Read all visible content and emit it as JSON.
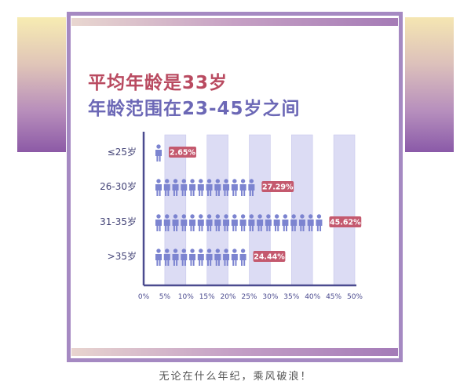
{
  "headline": {
    "line1": "平均年龄是33岁",
    "line2": "年龄范围在23-45岁之间"
  },
  "caption": "无论在什么年纪，乘风破浪！",
  "colors": {
    "accent_red": "#b94a60",
    "accent_blue": "#6c68b6",
    "person_icon": "#7c84d0",
    "label_badge": "#c4596e",
    "axis": "#4b4b8f",
    "band": "#dcdcf4",
    "card_border": "#a589c2"
  },
  "chart_data": {
    "type": "bar",
    "icon": "person-icon",
    "categories": [
      "≤25岁",
      "26-30岁",
      "31-35岁",
      ">35岁"
    ],
    "values": [
      2.65,
      27.29,
      45.62,
      24.44
    ],
    "value_labels": [
      "2.65%",
      "27.29%",
      "45.62%",
      "24.44%"
    ],
    "x_ticks": [
      "0%",
      "5%",
      "10%",
      "15%",
      "20%",
      "25%",
      "30%",
      "35%",
      "40%",
      "45%",
      "50%"
    ],
    "xlim": [
      0,
      50
    ],
    "grid": "alternating vertical bands"
  }
}
